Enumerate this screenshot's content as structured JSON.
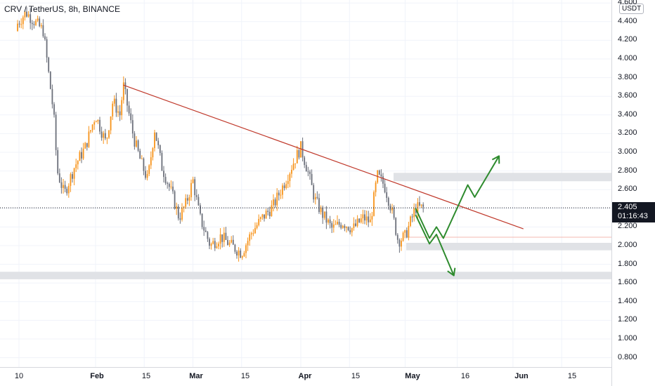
{
  "symbol": {
    "title": "CRV / TetherUS, 8h, BINANCE"
  },
  "price_axis": {
    "currency": "USDT",
    "ticks": [
      "4.600",
      "4.400",
      "4.200",
      "4.000",
      "3.800",
      "3.600",
      "3.400",
      "3.200",
      "3.000",
      "2.800",
      "2.600",
      "2.400",
      "2.200",
      "2.000",
      "1.800",
      "1.600",
      "1.400",
      "1.200",
      "1.000",
      "0.800"
    ],
    "last_price": "2.405",
    "countdown": "01:16:43"
  },
  "time_axis": {
    "ticks": [
      {
        "label": "10",
        "bold": false
      },
      {
        "label": "Feb",
        "bold": true
      },
      {
        "label": "15",
        "bold": false
      },
      {
        "label": "Mar",
        "bold": true
      },
      {
        "label": "15",
        "bold": false
      },
      {
        "label": "Apr",
        "bold": true
      },
      {
        "label": "15",
        "bold": false
      },
      {
        "label": "May",
        "bold": true
      },
      {
        "label": "16",
        "bold": false
      },
      {
        "label": "Jun",
        "bold": true
      },
      {
        "label": "15",
        "bold": false
      }
    ]
  },
  "colors": {
    "up_candle": "#f7931a",
    "down_candle": "#6b6f7a",
    "trendline": "#c0392b",
    "projection": "#2e8b2e",
    "zone": "#e0e2e6"
  },
  "chart_data": {
    "type": "candlestick",
    "title": "CRV / TetherUS, 8h, BINANCE",
    "y_unit": "USDT",
    "ylim": [
      0.7,
      4.65
    ],
    "last_price": 2.405,
    "close_path": [
      {
        "date": "Jan 8",
        "close": 4.3
      },
      {
        "date": "Jan 12",
        "close": 4.5
      },
      {
        "date": "Jan 17",
        "close": 4.3
      },
      {
        "date": "Jan 20",
        "close": 3.4
      },
      {
        "date": "Jan 21",
        "close": 2.8
      },
      {
        "date": "Jan 23",
        "close": 2.55
      },
      {
        "date": "Jan 26",
        "close": 2.85
      },
      {
        "date": "Jan 29",
        "close": 3.05
      },
      {
        "date": "Feb 1",
        "close": 3.4
      },
      {
        "date": "Feb 4",
        "close": 3.1
      },
      {
        "date": "Feb 6",
        "close": 3.55
      },
      {
        "date": "Feb 8",
        "close": 3.4
      },
      {
        "date": "Feb 9",
        "close": 3.72
      },
      {
        "date": "Feb 12",
        "close": 3.15
      },
      {
        "date": "Feb 14",
        "close": 2.9
      },
      {
        "date": "Feb 16",
        "close": 2.7
      },
      {
        "date": "Feb 18",
        "close": 3.25
      },
      {
        "date": "Feb 20",
        "close": 2.85
      },
      {
        "date": "Feb 23",
        "close": 2.55
      },
      {
        "date": "Feb 25",
        "close": 2.3
      },
      {
        "date": "Feb 27",
        "close": 2.45
      },
      {
        "date": "Mar 1",
        "close": 2.7
      },
      {
        "date": "Mar 3",
        "close": 2.3
      },
      {
        "date": "Mar 6",
        "close": 2.0
      },
      {
        "date": "Mar 9",
        "close": 2.1
      },
      {
        "date": "Mar 12",
        "close": 2.0
      },
      {
        "date": "Mar 15",
        "close": 1.92
      },
      {
        "date": "Mar 18",
        "close": 2.15
      },
      {
        "date": "Mar 21",
        "close": 2.3
      },
      {
        "date": "Mar 24",
        "close": 2.42
      },
      {
        "date": "Mar 27",
        "close": 2.65
      },
      {
        "date": "Mar 30",
        "close": 2.9
      },
      {
        "date": "Apr 1",
        "close": 3.05
      },
      {
        "date": "Apr 3",
        "close": 2.8
      },
      {
        "date": "Apr 5",
        "close": 2.5
      },
      {
        "date": "Apr 7",
        "close": 2.35
      },
      {
        "date": "Apr 10",
        "close": 2.18
      },
      {
        "date": "Apr 13",
        "close": 2.25
      },
      {
        "date": "Apr 16",
        "close": 2.18
      },
      {
        "date": "Apr 19",
        "close": 2.3
      },
      {
        "date": "Apr 21",
        "close": 2.25
      },
      {
        "date": "Apr 23",
        "close": 2.75
      },
      {
        "date": "Apr 25",
        "close": 2.65
      },
      {
        "date": "Apr 27",
        "close": 2.4
      },
      {
        "date": "Apr 29",
        "close": 2.05
      },
      {
        "date": "May 1",
        "close": 2.1
      },
      {
        "date": "May 3",
        "close": 2.3
      },
      {
        "date": "May 4",
        "close": 2.405
      }
    ]
  },
  "annotations": {
    "trendline": {
      "from": {
        "date": "Feb 9",
        "price": 3.72
      },
      "to": {
        "date": "Jun 4",
        "price": 2.18
      }
    },
    "zones": [
      {
        "top": 2.78,
        "bottom": 2.69
      },
      {
        "top": 2.03,
        "bottom": 1.95
      },
      {
        "top": 1.72,
        "bottom": 1.64
      }
    ],
    "horizontal_line": {
      "price": 2.09
    },
    "last_price_line": {
      "price": 2.405
    },
    "projections": [
      {
        "name": "bullish-scenario",
        "points": [
          {
            "date": "May 4",
            "price": 2.4
          },
          {
            "date": "May 8",
            "price": 2.08
          },
          {
            "date": "May 10",
            "price": 2.2
          },
          {
            "date": "May 12",
            "price": 2.08
          },
          {
            "date": "May 19",
            "price": 2.65
          },
          {
            "date": "May 21",
            "price": 2.52
          },
          {
            "date": "May 28",
            "price": 2.96
          }
        ]
      },
      {
        "name": "bearish-scenario",
        "points": [
          {
            "date": "May 4",
            "price": 2.33
          },
          {
            "date": "May 8",
            "price": 2.02
          },
          {
            "date": "May 10",
            "price": 2.12
          },
          {
            "date": "May 15",
            "price": 1.68
          }
        ]
      }
    ]
  }
}
